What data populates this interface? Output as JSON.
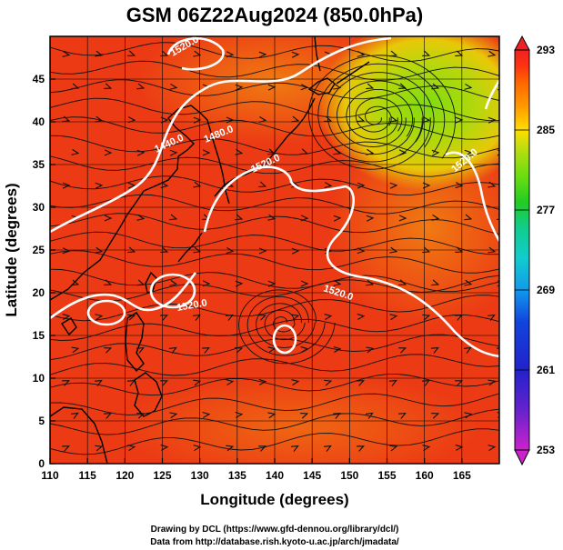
{
  "figure": {
    "title": "GSM 06Z22Aug2024 (850.0hPa)",
    "xlabel": "Longitude (degrees)",
    "ylabel": "Latitude  (degrees)",
    "credit_line1": "Drawing by DCL (https://www.gfd-dennou.org/library/dcl/)",
    "credit_line2": "Data from http://database.rish.kyoto-u.ac.jp/arch/jmadata/"
  },
  "map": {
    "lon_range": [
      110,
      170
    ],
    "lat_range": [
      0,
      50
    ],
    "x_ticks": [
      "110",
      "115",
      "120",
      "125",
      "130",
      "135",
      "140",
      "145",
      "150",
      "155",
      "160",
      "165"
    ],
    "y_ticks": [
      "0",
      "5",
      "10",
      "15",
      "20",
      "25",
      "30",
      "35",
      "40",
      "45"
    ],
    "grid": true,
    "colorbar": {
      "min": 253,
      "max": 293,
      "labels": [
        "293",
        "285",
        "277",
        "269",
        "261",
        "253"
      ],
      "colors": [
        "#cc22cc",
        "#6622cc",
        "#2222cc",
        "#1144dd",
        "#1199ee",
        "#11cccc",
        "#11cc88",
        "#22cc22",
        "#66dd11",
        "#aadd11",
        "#ffdd00",
        "#ff9900",
        "#ff6600",
        "#ff3311",
        "#ee2222"
      ]
    },
    "contour_labels": [
      "1440.0",
      "1480.0",
      "1520.0",
      "1520.0",
      "1520.0",
      "1520.0",
      "1520.0"
    ],
    "features": {
      "cyclone_center": {
        "lon": 153.5,
        "lat": 40.5
      },
      "typhoon_center": {
        "lon": 141,
        "lat": 16.5
      }
    }
  }
}
